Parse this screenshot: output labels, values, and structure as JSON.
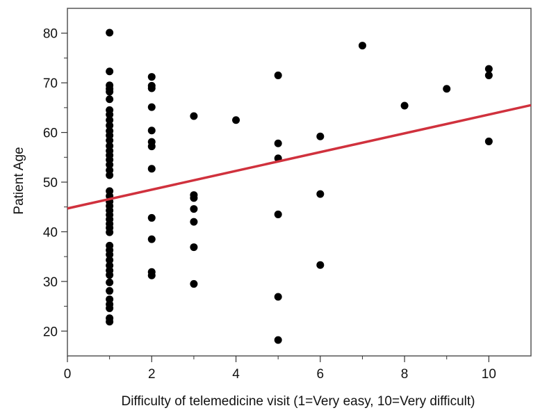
{
  "chart_data": {
    "type": "scatter",
    "xlabel": "Difficulty of telemedicine visit  (1=Very easy, 10=Very difficult)",
    "ylabel": "Patient Age",
    "xlim": [
      0,
      11
    ],
    "ylim": [
      15,
      85
    ],
    "xticks": [
      0,
      2,
      4,
      6,
      8,
      10
    ],
    "yticks": [
      20,
      30,
      40,
      50,
      60,
      70,
      80
    ],
    "grid": false,
    "legend": "none",
    "colors": {
      "points": "#000000",
      "fit_line": "#d0313d",
      "frame": "#555555"
    },
    "points": [
      {
        "x": 1,
        "y": 80.1
      },
      {
        "x": 1,
        "y": 72.3
      },
      {
        "x": 1,
        "y": 69.5
      },
      {
        "x": 1,
        "y": 68.8
      },
      {
        "x": 1,
        "y": 68.2
      },
      {
        "x": 1,
        "y": 66.7
      },
      {
        "x": 1,
        "y": 64.5
      },
      {
        "x": 1,
        "y": 63.6
      },
      {
        "x": 1,
        "y": 62.5
      },
      {
        "x": 1,
        "y": 61.4
      },
      {
        "x": 1,
        "y": 60.3
      },
      {
        "x": 1,
        "y": 59.4
      },
      {
        "x": 1,
        "y": 58.4
      },
      {
        "x": 1,
        "y": 57.3
      },
      {
        "x": 1,
        "y": 56.3
      },
      {
        "x": 1,
        "y": 55.4
      },
      {
        "x": 1,
        "y": 54.5
      },
      {
        "x": 1,
        "y": 53.5
      },
      {
        "x": 1,
        "y": 52.4
      },
      {
        "x": 1,
        "y": 51.4
      },
      {
        "x": 1,
        "y": 48.2
      },
      {
        "x": 1,
        "y": 47.2
      },
      {
        "x": 1,
        "y": 46.1
      },
      {
        "x": 1,
        "y": 45.2
      },
      {
        "x": 1,
        "y": 44.3
      },
      {
        "x": 1,
        "y": 43.4
      },
      {
        "x": 1,
        "y": 42.5
      },
      {
        "x": 1,
        "y": 41.6
      },
      {
        "x": 1,
        "y": 40.8
      },
      {
        "x": 1,
        "y": 39.9
      },
      {
        "x": 1,
        "y": 37.2
      },
      {
        "x": 1,
        "y": 36.3
      },
      {
        "x": 1,
        "y": 35.4
      },
      {
        "x": 1,
        "y": 34.3
      },
      {
        "x": 1,
        "y": 33.2
      },
      {
        "x": 1,
        "y": 32.2
      },
      {
        "x": 1,
        "y": 31.3
      },
      {
        "x": 1,
        "y": 29.8
      },
      {
        "x": 1,
        "y": 28.1
      },
      {
        "x": 1,
        "y": 26.4
      },
      {
        "x": 1,
        "y": 25.4
      },
      {
        "x": 1,
        "y": 24.6
      },
      {
        "x": 1,
        "y": 22.6
      },
      {
        "x": 1,
        "y": 21.9
      },
      {
        "x": 2,
        "y": 71.2
      },
      {
        "x": 2,
        "y": 69.4
      },
      {
        "x": 2,
        "y": 68.9
      },
      {
        "x": 2,
        "y": 65.1
      },
      {
        "x": 2,
        "y": 60.4
      },
      {
        "x": 2,
        "y": 58.1
      },
      {
        "x": 2,
        "y": 57.2
      },
      {
        "x": 2,
        "y": 52.7
      },
      {
        "x": 2,
        "y": 42.8
      },
      {
        "x": 2,
        "y": 38.5
      },
      {
        "x": 2,
        "y": 31.9
      },
      {
        "x": 2,
        "y": 31.2
      },
      {
        "x": 3,
        "y": 63.3
      },
      {
        "x": 3,
        "y": 47.4
      },
      {
        "x": 3,
        "y": 46.8
      },
      {
        "x": 3,
        "y": 44.6
      },
      {
        "x": 3,
        "y": 42.0
      },
      {
        "x": 3,
        "y": 36.9
      },
      {
        "x": 3,
        "y": 29.5
      },
      {
        "x": 4,
        "y": 62.5
      },
      {
        "x": 5,
        "y": 71.5
      },
      {
        "x": 5,
        "y": 57.8
      },
      {
        "x": 5,
        "y": 54.8
      },
      {
        "x": 5,
        "y": 43.5
      },
      {
        "x": 5,
        "y": 26.9
      },
      {
        "x": 5,
        "y": 18.2
      },
      {
        "x": 6,
        "y": 59.2
      },
      {
        "x": 6,
        "y": 47.6
      },
      {
        "x": 6,
        "y": 33.3
      },
      {
        "x": 7,
        "y": 77.5
      },
      {
        "x": 8,
        "y": 65.4
      },
      {
        "x": 9,
        "y": 68.8
      },
      {
        "x": 10,
        "y": 72.8
      },
      {
        "x": 10,
        "y": 71.5
      },
      {
        "x": 10,
        "y": 58.2
      }
    ],
    "fit_line": {
      "x": [
        0,
        11
      ],
      "y": [
        44.7,
        65.5
      ]
    }
  }
}
